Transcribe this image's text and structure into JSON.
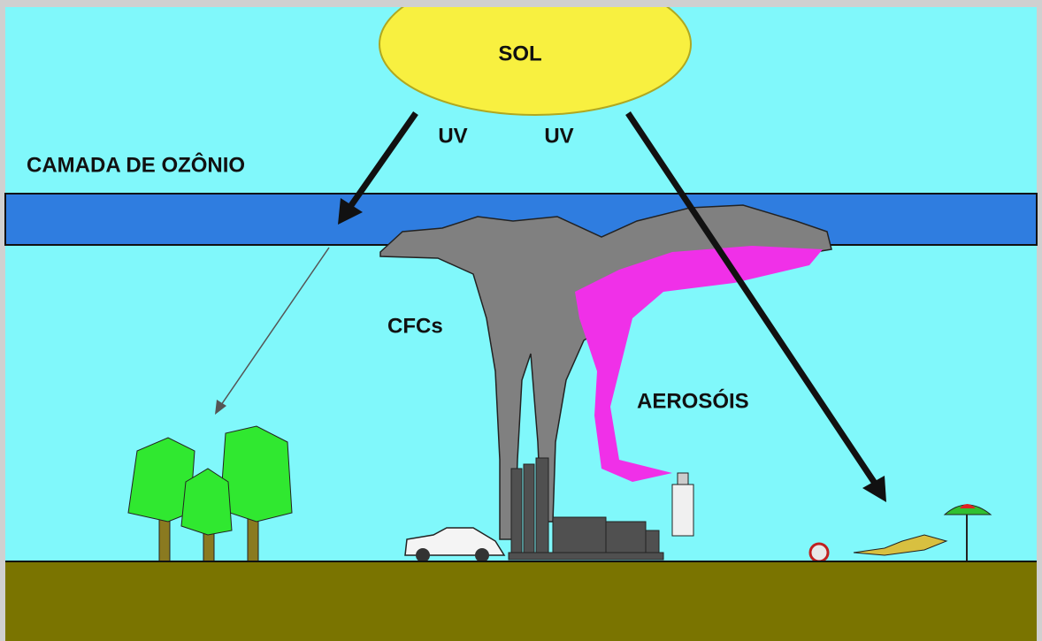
{
  "labels": {
    "sun": "SOL",
    "uv_left": "UV",
    "uv_right": "UV",
    "ozone_layer": "CAMADA DE OZÔNIO",
    "cfcs": "CFCs",
    "aerosols": "AEROSÓIS"
  }
}
